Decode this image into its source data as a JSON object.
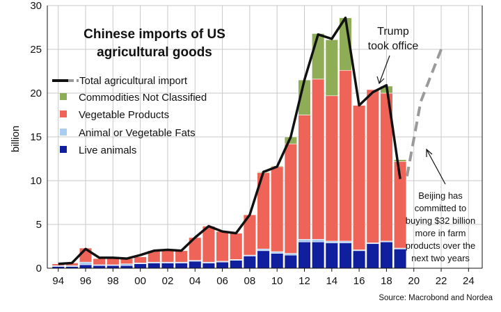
{
  "chart_data": {
    "type": "bar",
    "title": "Chinese imports of US agricultural goods",
    "title_lines": [
      "Chinese imports of US",
      "agricultural goods"
    ],
    "ylabel": "billion",
    "ylim": [
      0,
      30
    ],
    "xlim": [
      1993.2,
      2025
    ],
    "yticks": [
      "0",
      "5",
      "10",
      "15",
      "20",
      "25",
      "30"
    ],
    "xticks": [
      "94",
      "96",
      "98",
      "00",
      "02",
      "04",
      "06",
      "08",
      "10",
      "12",
      "14",
      "16",
      "18",
      "20",
      "22",
      "24"
    ],
    "grid": true,
    "legend_position": "upper-left",
    "years": [
      1994,
      1995,
      1996,
      1997,
      1998,
      1999,
      2000,
      2001,
      2002,
      2003,
      2004,
      2005,
      2006,
      2007,
      2008,
      2009,
      2010,
      2011,
      2012,
      2013,
      2014,
      2015,
      2016,
      2017,
      2018,
      2019
    ],
    "series": [
      {
        "name": "Live animals",
        "color": "#101f9e",
        "values": [
          0.2,
          0.2,
          0.4,
          0.3,
          0.3,
          0.3,
          0.5,
          0.6,
          0.6,
          0.6,
          0.8,
          0.6,
          0.7,
          0.9,
          1.4,
          2.0,
          1.7,
          1.5,
          3.0,
          3.0,
          2.9,
          2.9,
          2.0,
          2.8,
          3.0,
          2.2
        ]
      },
      {
        "name": "Animal or Vegetable Fats",
        "color": "#a9cdf0",
        "values": [
          0.1,
          0.1,
          0.3,
          0.1,
          0.1,
          0.2,
          0.1,
          0.1,
          0.1,
          0.1,
          0.1,
          0.1,
          0.1,
          0.1,
          0.1,
          0.2,
          0.2,
          0.2,
          0.3,
          0.3,
          0.2,
          0.2,
          0.1,
          0.1,
          0.1,
          0.1
        ]
      },
      {
        "name": "Vegetable Products",
        "color": "#ef6458",
        "values": [
          0.2,
          0.3,
          1.6,
          0.7,
          0.8,
          0.6,
          0.7,
          1.3,
          1.4,
          1.3,
          2.6,
          4.1,
          3.4,
          3.0,
          4.6,
          8.7,
          9.7,
          12.5,
          14.2,
          18.3,
          16.6,
          19.5,
          16.5,
          17.5,
          16.9,
          9.9
        ]
      },
      {
        "name": "Commodities Not Classified",
        "color": "#8fad57",
        "values": [
          0.0,
          0.0,
          0.0,
          0.0,
          0.0,
          0.0,
          0.0,
          0.0,
          0.0,
          0.0,
          0.0,
          0.0,
          0.0,
          0.0,
          0.0,
          0.1,
          0.1,
          0.8,
          4.0,
          5.2,
          6.4,
          6.0,
          0.0,
          0.0,
          0.8,
          0.2
        ]
      },
      {
        "name": "Total agricultural import",
        "type": "line",
        "color": "#111111",
        "x": [
          1994,
          1995,
          1996,
          1997,
          1998,
          1999,
          2000,
          2001,
          2002,
          2003,
          2004,
          2005,
          2006,
          2007,
          2008,
          2009,
          2010,
          2011,
          2012,
          2013,
          2014,
          2015,
          2016,
          2017,
          2018,
          2019
        ],
        "values": [
          0.5,
          0.6,
          2.2,
          1.2,
          1.2,
          1.1,
          1.5,
          2.0,
          2.1,
          2.0,
          3.5,
          4.8,
          4.2,
          4.0,
          6.1,
          11.0,
          11.6,
          15.0,
          21.5,
          26.7,
          26.2,
          28.6,
          18.6,
          20.1,
          20.9,
          10.2
        ]
      },
      {
        "name": "Projection",
        "type": "dashed-line",
        "color": "#9a9a9a",
        "x": [
          2019.5,
          2020.5,
          2022
        ],
        "values": [
          10.5,
          19,
          25
        ]
      }
    ],
    "legend": [
      "Total agricultural import",
      "Commodities Not Classified",
      "Vegetable Products",
      "Animal or Vegetable Fats",
      "Live animals"
    ],
    "annotations": {
      "trump": [
        "Trump",
        "took office"
      ],
      "beijing": [
        "Beijing has",
        "committed to",
        "buying $32 billion",
        "more in farm",
        "products over the",
        "next two years"
      ]
    },
    "source": "Source: Macrobond and Nordea"
  }
}
